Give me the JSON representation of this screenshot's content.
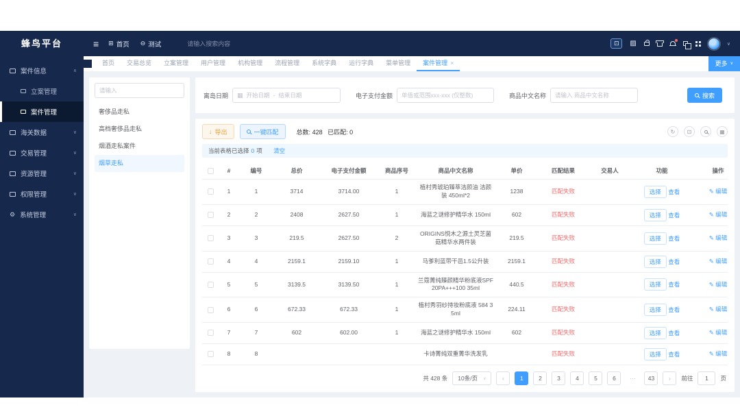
{
  "colors": {
    "accent": "#409eff",
    "danger": "#f56c6c",
    "warning": "#e6a23c",
    "dark_navy": "#16294d"
  },
  "app": {
    "logo_text": "蜂鸟平台"
  },
  "navbar": {
    "hamburger_icon": "≡",
    "items": [
      {
        "icon": "⊞",
        "label": "首页"
      },
      {
        "icon": "⊖",
        "label": "测试"
      }
    ],
    "search_placeholder": "请输入搜索内容",
    "right_icons": [
      "monitor-icon",
      "screenshot-icon",
      "lock-icon",
      "theme-icon",
      "notification-bell-icon",
      "layers-icon",
      "apps-grid-icon",
      "avatar",
      "chevron-down-icon"
    ]
  },
  "sidebar": {
    "groups": [
      {
        "label": "案件信息",
        "chevron": "∧",
        "children": [
          {
            "label": "立案管理",
            "active": false
          },
          {
            "label": "案件管理",
            "active": true
          }
        ]
      },
      {
        "label": "海关数据",
        "chevron": "∨",
        "children": []
      },
      {
        "label": "交易管理",
        "chevron": "∨",
        "children": []
      },
      {
        "label": "资源管理",
        "chevron": "∨",
        "children": []
      },
      {
        "label": "权限管理",
        "chevron": "∨",
        "children": []
      },
      {
        "label": "系统管理",
        "chevron": "∨",
        "children": []
      }
    ]
  },
  "tabbar": {
    "tabs": [
      {
        "label": "首页",
        "active": false
      },
      {
        "label": "交易总览",
        "active": false
      },
      {
        "label": "立案管理",
        "active": false
      },
      {
        "label": "用户管理",
        "active": false
      },
      {
        "label": "机构管理",
        "active": false
      },
      {
        "label": "流程管理",
        "active": false
      },
      {
        "label": "系统字典",
        "active": false
      },
      {
        "label": "运行字典",
        "active": false
      },
      {
        "label": "菜单管理",
        "active": false
      },
      {
        "label": "案件管理",
        "active": true,
        "close_icon": "×"
      }
    ],
    "more_label": "更多",
    "more_caret": "∨"
  },
  "left_panel": {
    "search_placeholder": "请输入",
    "categories": [
      {
        "label": "奢侈品走私",
        "active": false
      },
      {
        "label": "高档奢侈品走私",
        "active": false
      },
      {
        "label": "烟酒走私案件",
        "active": false
      },
      {
        "label": "烟草走私",
        "active": true
      }
    ]
  },
  "filters": {
    "date_label": "离岛日期",
    "date_start_placeholder": "开始日期",
    "date_separator": "-",
    "date_end_placeholder": "结束日期",
    "amount_label": "电子支付金额",
    "amount_placeholder": "单值或范围xxx-xxx (仅整数)",
    "name_label": "商品中文名称",
    "name_placeholder": "请输入 商品中文名称",
    "search_label": "搜索"
  },
  "toolbar": {
    "export_label": "导出",
    "export_icon": "↓",
    "match_label": "一键匹配",
    "total_label": "总数:",
    "total_value": "428",
    "matched_label": "已匹配:",
    "matched_value": "0",
    "right_icons": [
      "refresh-icon",
      "fullscreen-icon",
      "zoom-icon",
      "column-settings-icon"
    ]
  },
  "selection_bar": {
    "prefix": "当前表格已选择",
    "count": "0",
    "suffix": "项",
    "clear_label": "清空"
  },
  "table": {
    "columns": [
      "#",
      "编号",
      "总价",
      "电子支付金额",
      "商品序号",
      "商品中文名称",
      "单价",
      "匹配结果",
      "交易人",
      "功能",
      "操作"
    ],
    "row_actions": {
      "select": "选择",
      "view": "查看",
      "edit": "编辑",
      "edit_icon": "✎"
    },
    "rows": [
      {
        "idx": "1",
        "code": "1",
        "total": "3714",
        "epay": "3714.00",
        "seq": "1",
        "name": "植村秀琥珀臻萃洁颜油 洁颜装 450ml*2",
        "unit": "1238",
        "result": "匹配失败",
        "trader": ""
      },
      {
        "idx": "2",
        "code": "2",
        "total": "2408",
        "epay": "2627.50",
        "seq": "1",
        "name": "海蓝之谜修护精华水 150ml",
        "unit": "602",
        "result": "匹配失败",
        "trader": ""
      },
      {
        "idx": "3",
        "code": "3",
        "total": "219.5",
        "epay": "2627.50",
        "seq": "2",
        "name": "ORIGINS悦木之源土灵芝菌菇精华水两件装",
        "unit": "219.5",
        "result": "匹配失败",
        "trader": ""
      },
      {
        "idx": "4",
        "code": "4",
        "total": "2159.1",
        "epay": "2159.10",
        "seq": "1",
        "name": "马爹利蓝带干邑1.5公升装",
        "unit": "2159.1",
        "result": "匹配失败",
        "trader": ""
      },
      {
        "idx": "5",
        "code": "5",
        "total": "3139.5",
        "epay": "3139.50",
        "seq": "1",
        "name": "兰蔻菁纯臻颜精华粉底液SPF20PA+++100 35ml",
        "unit": "440.5",
        "result": "匹配失败",
        "trader": ""
      },
      {
        "idx": "6",
        "code": "6",
        "total": "672.33",
        "epay": "672.33",
        "seq": "1",
        "name": "植村秀羽纱持妆粉底液 584 35ml",
        "unit": "224.11",
        "result": "匹配失败",
        "trader": ""
      },
      {
        "idx": "7",
        "code": "7",
        "total": "602",
        "epay": "602.00",
        "seq": "1",
        "name": "海蓝之谜修护精华水 150ml",
        "unit": "602",
        "result": "匹配失败",
        "trader": ""
      },
      {
        "idx": "8",
        "code": "8",
        "total": "",
        "epay": "",
        "seq": "",
        "name": "卡诗菁纯双重菁华洗发乳",
        "unit": "",
        "result": "匹配失败",
        "trader": ""
      }
    ]
  },
  "pagination": {
    "total_text": "共 428 条",
    "page_size": "10条/页",
    "prev_icon": "‹",
    "next_icon": "›",
    "pages": [
      "1",
      "2",
      "3",
      "4",
      "5",
      "6",
      "···",
      "43"
    ],
    "active_page": "1",
    "jump_prefix": "前往",
    "jump_value": "1",
    "jump_suffix": "页"
  }
}
